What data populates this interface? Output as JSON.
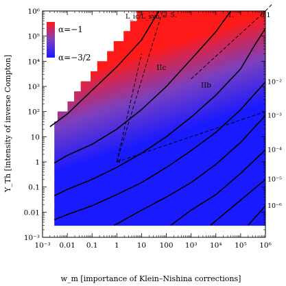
{
  "chart_data": {
    "type": "heatmap",
    "x_axis": {
      "label": "w_m [importance of Klein–Nishina corrections]",
      "scale": "log",
      "range": [
        0.001,
        1000000
      ],
      "ticks": [
        {
          "value": 0.001,
          "label": "10⁻³"
        },
        {
          "value": 0.01,
          "label": "0.01"
        },
        {
          "value": 0.1,
          "label": "0.1"
        },
        {
          "value": 1,
          "label": "1"
        },
        {
          "value": 10,
          "label": "10"
        },
        {
          "value": 100,
          "label": "100"
        },
        {
          "value": 1000,
          "label": "10³"
        },
        {
          "value": 10000,
          "label": "10⁴"
        },
        {
          "value": 100000,
          "label": "10⁵"
        },
        {
          "value": 1000000,
          "label": "10⁶"
        }
      ]
    },
    "y_axis": {
      "label": "Y_Th [intensity of inverse Compton]",
      "scale": "log",
      "range": [
        0.001,
        1000000
      ],
      "ticks": [
        {
          "value": 0.001,
          "label": "10⁻³"
        },
        {
          "value": 0.01,
          "label": "0.01"
        },
        {
          "value": 0.1,
          "label": "0.1"
        },
        {
          "value": 1,
          "label": "1"
        },
        {
          "value": 10,
          "label": "10"
        },
        {
          "value": 100,
          "label": "10²"
        },
        {
          "value": 1000,
          "label": "10³"
        },
        {
          "value": 10000,
          "label": "10⁴"
        },
        {
          "value": 100000,
          "label": "10⁵"
        },
        {
          "value": 1000000,
          "label": "10⁶"
        }
      ]
    },
    "color_scale": {
      "low": {
        "label": "α=−3/2",
        "color": "#1a1aff"
      },
      "high": {
        "label": "α=−1",
        "color": "#ff1a1a"
      },
      "mid": "#7a40c0"
    },
    "domain": {
      "x_min": 0.003,
      "x_max": 1000000,
      "y_min": 0.003,
      "y_max": 1000000,
      "lower_left_edge_y": 40,
      "staircase_ratio": 4
    },
    "contours_top_label": "L_ic/L_syn =",
    "contours": [
      {
        "label": "5.",
        "position": "top",
        "points": [
          [
            0.002,
            25
          ],
          [
            0.01,
            80
          ],
          [
            0.1,
            700
          ],
          [
            1,
            6000
          ],
          [
            10,
            70000
          ],
          [
            50,
            1000000
          ]
        ]
      },
      {
        "label": "1.",
        "position": "top",
        "points": [
          [
            0.003,
            0.9
          ],
          [
            0.01,
            1.8
          ],
          [
            0.1,
            5
          ],
          [
            1,
            20
          ],
          [
            10,
            120
          ],
          [
            100,
            1000
          ],
          [
            1000,
            12000
          ],
          [
            10000,
            150000
          ],
          [
            40000,
            1000000
          ]
        ]
      },
      {
        "label": "0.1",
        "position": "top",
        "points": [
          [
            0.003,
            0.045
          ],
          [
            0.01,
            0.08
          ],
          [
            0.1,
            0.2
          ],
          [
            1,
            0.6
          ],
          [
            10,
            2.2
          ],
          [
            100,
            10
          ],
          [
            1000,
            60
          ],
          [
            10000,
            450
          ],
          [
            100000,
            5000
          ],
          [
            400000,
            50000
          ],
          [
            1000000,
            200000
          ]
        ]
      },
      {
        "label": "10⁻²",
        "position": "right",
        "points": [
          [
            0.003,
            0.005
          ],
          [
            0.01,
            0.008
          ],
          [
            0.1,
            0.018
          ],
          [
            1,
            0.05
          ],
          [
            10,
            0.15
          ],
          [
            100,
            0.6
          ],
          [
            1000,
            2.8
          ],
          [
            10000,
            15
          ],
          [
            100000,
            120
          ],
          [
            1000000,
            1500
          ]
        ]
      },
      {
        "label": "10⁻³",
        "position": "right",
        "points": [
          [
            0.8,
            0.003
          ],
          [
            10,
            0.012
          ],
          [
            100,
            0.04
          ],
          [
            1000,
            0.15
          ],
          [
            10000,
            0.8
          ],
          [
            100000,
            6
          ],
          [
            1000000,
            70
          ]
        ]
      },
      {
        "label": "10⁻⁴",
        "position": "right",
        "points": [
          [
            150,
            0.003
          ],
          [
            1000,
            0.012
          ],
          [
            10000,
            0.05
          ],
          [
            100000,
            0.35
          ],
          [
            1000000,
            3
          ]
        ]
      },
      {
        "label": "10⁻⁵",
        "position": "right",
        "points": [
          [
            6000,
            0.003
          ],
          [
            100000,
            0.03
          ],
          [
            1000000,
            0.2
          ]
        ]
      },
      {
        "label": "10⁻⁶",
        "position": "right",
        "points": [
          [
            200000,
            0.003
          ],
          [
            1000000,
            0.018
          ]
        ]
      }
    ],
    "dashed_lines": [
      [
        [
          1,
          1
        ],
        [
          70,
          1000000
        ]
      ],
      [
        [
          1,
          1
        ],
        [
          10,
          20000
        ]
      ],
      [
        [
          1,
          1
        ],
        [
          1000000,
          100
        ]
      ],
      [
        [
          1000,
          2000
        ],
        [
          1000000,
          1000000
        ]
      ],
      [
        [
          1000000,
          1000000
        ],
        [
          2000000,
          2000000
        ]
      ]
    ],
    "regions": [
      {
        "label": "IIc",
        "x": 40,
        "y": 4500
      },
      {
        "label": "IIb",
        "x": 2500,
        "y": 900
      }
    ]
  }
}
